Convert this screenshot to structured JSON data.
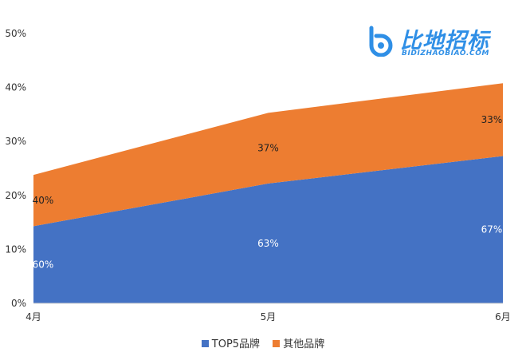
{
  "chart_data": {
    "type": "area",
    "stacked": true,
    "categories": [
      "4月",
      "5月",
      "6月"
    ],
    "series": [
      {
        "name": "TOP5品牌",
        "values": [
          14.3,
          22.2,
          27.3
        ],
        "labels": [
          "60%",
          "63%",
          "67%"
        ],
        "color": "#4472c4",
        "label_color": "#ffffff"
      },
      {
        "name": "其他品牌",
        "values": [
          9.5,
          13.1,
          13.5
        ],
        "labels": [
          "40%",
          "37%",
          "33%"
        ],
        "color": "#ed7d31",
        "label_color": "#222222"
      }
    ],
    "yticks": [
      "0%",
      "10%",
      "20%",
      "30%",
      "40%",
      "50%"
    ],
    "ylim": [
      0,
      50
    ],
    "grid": false,
    "legend_position": "bottom"
  },
  "watermark": {
    "text_cn": "比地招标",
    "text_en": "BIDIZHAOBIAO.COM",
    "color": "#2f8fe6"
  }
}
